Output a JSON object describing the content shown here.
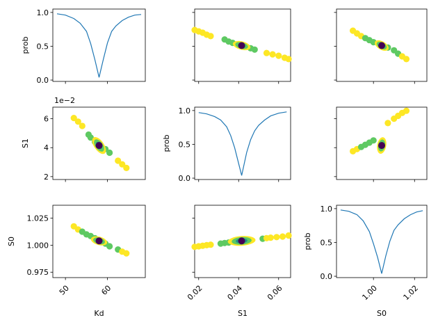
{
  "chart_data": {
    "type": "corner-plot",
    "parameters": [
      "Kd",
      "S1",
      "S0"
    ],
    "best_fit": {
      "Kd": 58.0,
      "S1": 0.0415,
      "S0": 1.004
    },
    "colors": {
      "line": "#1f77b4",
      "best_fit": "#440154",
      "contour_outer": "#fde725",
      "contour_mid": "#5ec962",
      "contour_inner": "#21918c"
    },
    "axis_labels": {
      "prob": "prob",
      "Kd": "Kd",
      "S1": "S1",
      "S0": "S0"
    },
    "offset_text": {
      "S1_axis": "1e−2"
    },
    "panels": {
      "p00": {
        "xlim": [
          47,
          69
        ],
        "ylim": [
          -0.02,
          1.05
        ],
        "yticks": [
          0.0,
          0.5,
          1.0
        ],
        "ytick_labels": [
          "0.0",
          "0.5",
          "1.0"
        ],
        "xticks": [
          50,
          60
        ],
        "ylabel": "prob",
        "type": "line"
      },
      "p01": {
        "xlim": [
          0.018,
          0.066
        ],
        "ylim": [
          -0.02,
          1.05
        ],
        "yticks": [
          0.0,
          0.5,
          1.0
        ],
        "xticks": [
          0.02,
          0.04,
          0.06
        ],
        "type": "scatter",
        "shows": "prob vs S1"
      },
      "p02": {
        "xlim": [
          0.982,
          1.026
        ],
        "ylim": [
          -0.02,
          1.05
        ],
        "yticks": [
          0.0,
          0.5,
          1.0
        ],
        "xticks": [
          1.0,
          1.02
        ],
        "type": "scatter",
        "shows": "prob vs S0"
      },
      "p10": {
        "xlim": [
          47,
          69
        ],
        "ylim": [
          1.8,
          6.8
        ],
        "yticks": [
          2,
          4,
          6
        ],
        "ytick_labels": [
          "2",
          "4",
          "6"
        ],
        "xticks": [
          50,
          60
        ],
        "ylabel": "S1",
        "type": "scatter",
        "shows": "S1 vs Kd"
      },
      "p11": {
        "xlim": [
          0.018,
          0.066
        ],
        "ylim": [
          -0.02,
          1.05
        ],
        "yticks": [
          0.0,
          0.5,
          1.0
        ],
        "ytick_labels": [
          "0.0",
          "0.5",
          "1.0"
        ],
        "xticks": [
          0.02,
          0.04,
          0.06
        ],
        "ylabel": "prob",
        "type": "line"
      },
      "p12": {
        "xlim": [
          0.982,
          1.026
        ],
        "ylim": [
          1.8,
          6.8
        ],
        "yticks": [
          2,
          4,
          6
        ],
        "xticks": [
          1.0,
          1.02
        ],
        "type": "scatter",
        "shows": "S1 vs S0"
      },
      "p20": {
        "xlim": [
          47,
          69
        ],
        "ylim": [
          0.97,
          1.037
        ],
        "yticks": [
          0.975,
          1.0,
          1.025
        ],
        "ytick_labels": [
          "0.975",
          "1.000",
          "1.025"
        ],
        "xticks": [
          50,
          60
        ],
        "xtick_labels": [
          "50",
          "60"
        ],
        "xlabel": "Kd",
        "ylabel": "S0",
        "type": "scatter",
        "shows": "S0 vs Kd"
      },
      "p21": {
        "xlim": [
          0.018,
          0.066
        ],
        "ylim": [
          0.97,
          1.037
        ],
        "yticks": [
          0.975,
          1.0,
          1.025
        ],
        "xticks": [
          0.02,
          0.04,
          0.06
        ],
        "xtick_labels": [
          "0.02",
          "0.04",
          "0.06"
        ],
        "xlabel": "S1",
        "type": "scatter",
        "shows": "S0 vs S1"
      },
      "p22": {
        "xlim": [
          0.982,
          1.026
        ],
        "ylim": [
          -0.02,
          1.05
        ],
        "yticks": [
          0.0,
          0.5,
          1.0
        ],
        "ytick_labels": [
          "0.0",
          "0.5",
          "1.0"
        ],
        "xticks": [
          1.0,
          1.02
        ],
        "xtick_labels": [
          "1.00",
          "1.02"
        ],
        "xlabel": "S0",
        "ylabel": "prob",
        "type": "line"
      }
    },
    "series": {
      "p00_line": {
        "x": [
          48.0,
          50.0,
          52.0,
          53.5,
          55.0,
          56.0,
          57.0,
          58.0,
          59.0,
          60.0,
          61.0,
          62.0,
          63.5,
          65.0,
          66.5,
          68.0
        ],
        "y": [
          0.98,
          0.96,
          0.91,
          0.84,
          0.72,
          0.54,
          0.3,
          0.04,
          0.3,
          0.55,
          0.72,
          0.8,
          0.88,
          0.93,
          0.96,
          0.97
        ]
      },
      "p11_line": {
        "x": [
          0.02,
          0.024,
          0.028,
          0.031,
          0.034,
          0.036,
          0.038,
          0.0415,
          0.044,
          0.046,
          0.048,
          0.05,
          0.053,
          0.056,
          0.06,
          0.064
        ],
        "y": [
          0.97,
          0.95,
          0.91,
          0.86,
          0.76,
          0.63,
          0.45,
          0.04,
          0.38,
          0.57,
          0.7,
          0.78,
          0.86,
          0.92,
          0.96,
          0.98
        ]
      },
      "p22_line": {
        "x": [
          0.984,
          0.988,
          0.992,
          0.995,
          0.998,
          1.0,
          1.002,
          1.004,
          1.006,
          1.008,
          1.01,
          1.012,
          1.015,
          1.018,
          1.021,
          1.024
        ],
        "y": [
          0.98,
          0.96,
          0.91,
          0.82,
          0.66,
          0.48,
          0.28,
          0.04,
          0.3,
          0.52,
          0.68,
          0.76,
          0.85,
          0.91,
          0.95,
          0.97
        ]
      },
      "p01_points": {
        "x": [
          0.018,
          0.02,
          0.022,
          0.024,
          0.026,
          0.033,
          0.035,
          0.037,
          0.044,
          0.046,
          0.048,
          0.054,
          0.057,
          0.06,
          0.063,
          0.065
        ],
        "y": [
          0.74,
          0.72,
          0.7,
          0.67,
          0.65,
          0.6,
          0.57,
          0.55,
          0.49,
          0.47,
          0.45,
          0.4,
          0.38,
          0.36,
          0.33,
          0.31
        ]
      },
      "p02_points": {
        "x": [
          0.99,
          0.992,
          0.994,
          0.996,
          0.998,
          1.0,
          1.007,
          1.01,
          1.012,
          1.014,
          1.016
        ],
        "y": [
          0.73,
          0.69,
          0.65,
          0.62,
          0.59,
          0.56,
          0.48,
          0.44,
          0.39,
          0.35,
          0.31
        ]
      },
      "p10_points": {
        "x": [
          52.0,
          53.0,
          54.0,
          55.5,
          56.0,
          57.0,
          59.5,
          60.5,
          62.5,
          63.5,
          64.5
        ],
        "y": [
          6.05,
          5.8,
          5.5,
          4.9,
          4.7,
          4.4,
          3.9,
          3.65,
          3.1,
          2.85,
          2.6
        ]
      },
      "p12_points": {
        "x": [
          0.99,
          0.992,
          0.994,
          0.996,
          0.998,
          1.0,
          1.007,
          1.01,
          1.012,
          1.014,
          1.016
        ],
        "y": [
          3.75,
          3.9,
          4.05,
          4.2,
          4.35,
          4.5,
          5.7,
          6.0,
          6.2,
          6.4,
          6.55
        ]
      },
      "p20_points": {
        "x": [
          52.0,
          53.0,
          54.0,
          55.0,
          56.0,
          57.0,
          59.5,
          60.5,
          62.5,
          63.5,
          64.5
        ],
        "y": [
          1.0175,
          1.0145,
          1.0125,
          1.01,
          1.0085,
          1.0065,
          1.0015,
          0.999,
          0.996,
          0.994,
          0.9925
        ]
      },
      "p21_points": {
        "x": [
          0.018,
          0.02,
          0.022,
          0.024,
          0.026,
          0.031,
          0.033,
          0.035,
          0.052,
          0.054,
          0.056,
          0.059,
          0.062,
          0.065
        ],
        "y": [
          0.9985,
          0.999,
          0.9995,
          1.0,
          1.0005,
          1.0015,
          1.002,
          1.0025,
          1.006,
          1.0065,
          1.007,
          1.0075,
          1.008,
          1.009
        ]
      }
    }
  }
}
